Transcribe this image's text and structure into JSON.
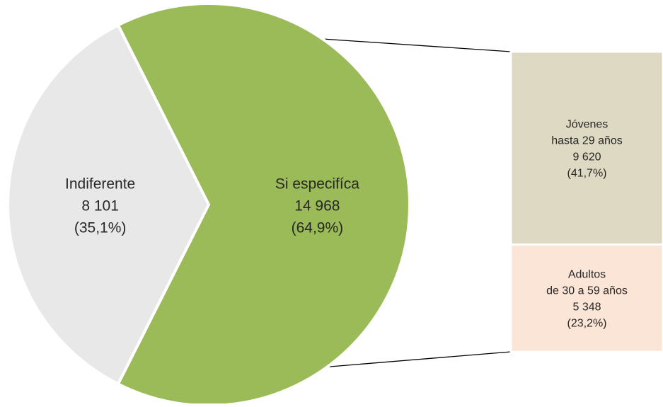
{
  "chart_data": {
    "type": "bar-of-pie",
    "pie": {
      "slices": [
        {
          "label": "Indiferente",
          "value_text": "8 101",
          "pct_text": "(35,1%)",
          "value": 8101,
          "percent": 35.1,
          "color": "#e8e8e8"
        },
        {
          "label": "Si especifíca",
          "value_text": "14 968",
          "pct_text": "(64,9%)",
          "value": 14968,
          "percent": 64.9,
          "color": "#9bbb59"
        }
      ]
    },
    "bar": {
      "source_slice": "Si especifíca",
      "segments": [
        {
          "label_line1": "Jóvenes",
          "label_line2": "hasta 29 años",
          "value_text": "9 620",
          "pct_text": "(41,7%)",
          "value": 9620,
          "percent": 41.7,
          "color": "#ddd9c3"
        },
        {
          "label_line1": "Adultos",
          "label_line2": "de 30 a 59 años",
          "value_text": "5 348",
          "pct_text": "(23,2%)",
          "value": 5348,
          "percent": 23.2,
          "color": "#fbe5d6"
        }
      ]
    }
  }
}
